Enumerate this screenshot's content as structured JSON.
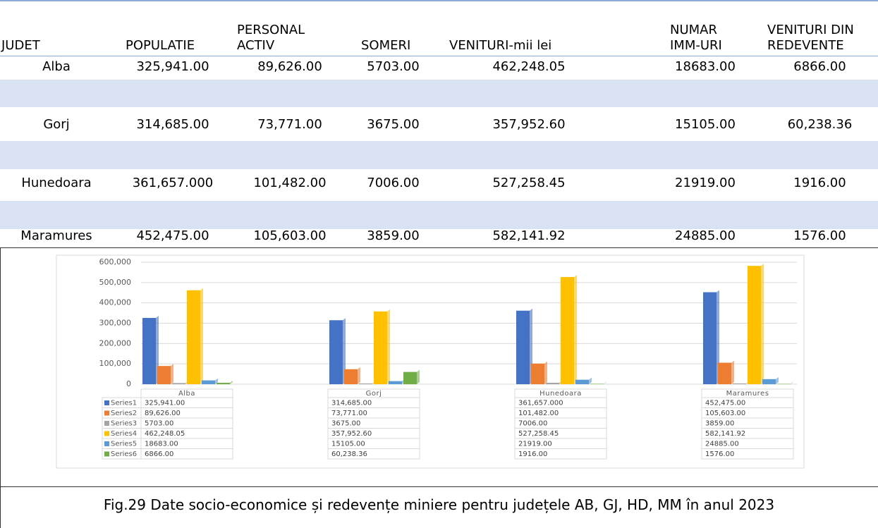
{
  "table": {
    "headers": [
      "JUDET",
      "POPULATIE",
      "PERSONAL\nACTIV",
      "SOMERI",
      "VENITURI-mii lei",
      "NUMAR\nIMM-URI",
      "VENITURI DIN\nREDEVENTE"
    ],
    "rows": [
      [
        "Alba",
        "325,941.00",
        "89,626.00",
        "5703.00",
        "462,248.05",
        "18683.00",
        "6866.00"
      ],
      [
        "Gorj",
        "314,685.00",
        "73,771.00",
        "3675.00",
        "357,952.60",
        "15105.00",
        "60,238.36"
      ],
      [
        "Hunedoara",
        "361,657.000",
        "101,482.00",
        "7006.00",
        "527,258.45",
        "21919.00",
        "1916.00"
      ],
      [
        "Maramures",
        "452,475.00",
        "105,603.00",
        "3859.00",
        "582,141.92",
        "24885.00",
        "1576.00"
      ]
    ]
  },
  "chart_data": {
    "type": "bar",
    "categories": [
      "Alba",
      "Gorj",
      "Hunedoara",
      "Maramures"
    ],
    "series": [
      {
        "name": "Series1",
        "color": "#4472c4",
        "values": [
          325941,
          314685,
          361657,
          452475
        ],
        "value_labels": [
          "325,941.00",
          "314,685.00",
          "361,657.000",
          "452,475.00"
        ]
      },
      {
        "name": "Series2",
        "color": "#ed7d31",
        "values": [
          89626,
          73771,
          101482,
          105603
        ],
        "value_labels": [
          "89,626.00",
          "73,771.00",
          "101,482.00",
          "105,603.00"
        ]
      },
      {
        "name": "Series3",
        "color": "#a5a5a5",
        "values": [
          5703,
          3675,
          7006,
          3859
        ],
        "value_labels": [
          "5703.00",
          "3675.00",
          "7006.00",
          "3859.00"
        ]
      },
      {
        "name": "Series4",
        "color": "#ffc000",
        "values": [
          462248.05,
          357952.6,
          527258.45,
          582141.92
        ],
        "value_labels": [
          "462,248.05",
          "357,952.60",
          "527,258.45",
          "582,141.92"
        ]
      },
      {
        "name": "Series5",
        "color": "#5b9bd5",
        "values": [
          18683,
          15105,
          21919,
          24885
        ],
        "value_labels": [
          "18683.00",
          "15105.00",
          "21919.00",
          "24885.00"
        ]
      },
      {
        "name": "Series6",
        "color": "#70ad47",
        "values": [
          6866,
          60238.36,
          1916,
          1576
        ],
        "value_labels": [
          "6866.00",
          "60,238.36",
          "1916.00",
          "1576.00"
        ]
      }
    ],
    "ylim": [
      0,
      600000
    ],
    "yticks": [
      0,
      {
        "value": 100000,
        "label": "100,000"
      },
      {
        "value": 200000,
        "label": "200,000"
      },
      {
        "value": 300000,
        "label": "300,000"
      },
      {
        "value": 400000,
        "label": "400,000"
      },
      {
        "value": 500000,
        "label": "500,000"
      },
      {
        "value": 600000,
        "label": "600,000"
      }
    ],
    "grid": true
  },
  "caption": "Fig.29 Date socio-economice și redevențe miniere pentru județele AB, GJ, HD, MM în anul 2023"
}
